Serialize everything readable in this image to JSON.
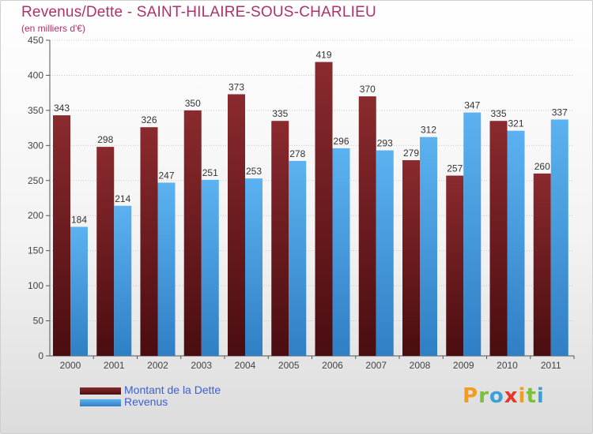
{
  "header": {
    "title": "Revenus/Dette - SAINT-HILAIRE-SOUS-CHARLIEU",
    "subtitle": "(en milliers d'€)"
  },
  "logo": {
    "text": "Proxiti",
    "letters": [
      {
        "ch": "P",
        "color": "#f39c1e"
      },
      {
        "ch": "r",
        "color": "#7bbf3a"
      },
      {
        "ch": "o",
        "color": "#3aa0d8"
      },
      {
        "ch": "x",
        "color": "#e8362b"
      },
      {
        "ch": "i",
        "color": "#f39c1e"
      },
      {
        "ch": "t",
        "color": "#7bbf3a"
      },
      {
        "ch": "i",
        "color": "#3aa0d8"
      }
    ]
  },
  "chart_data": {
    "type": "bar",
    "categories": [
      "2000",
      "2001",
      "2002",
      "2003",
      "2004",
      "2005",
      "2006",
      "2007",
      "2008",
      "2009",
      "2010",
      "2011"
    ],
    "series": [
      {
        "name": "Montant de la Dette",
        "color": "#7a1f24",
        "values": [
          343,
          298,
          326,
          350,
          373,
          335,
          419,
          370,
          279,
          257,
          335,
          260
        ]
      },
      {
        "name": "Revenus",
        "color": "#4aa3e8",
        "values": [
          184,
          214,
          247,
          251,
          253,
          278,
          296,
          293,
          312,
          347,
          321,
          337
        ]
      }
    ],
    "ylim": [
      0,
      450
    ],
    "yticks": [
      "0",
      "50",
      "100",
      "150",
      "200",
      "250",
      "300",
      "350",
      "400",
      "450"
    ],
    "grid": true,
    "legend": "bottom-left"
  }
}
